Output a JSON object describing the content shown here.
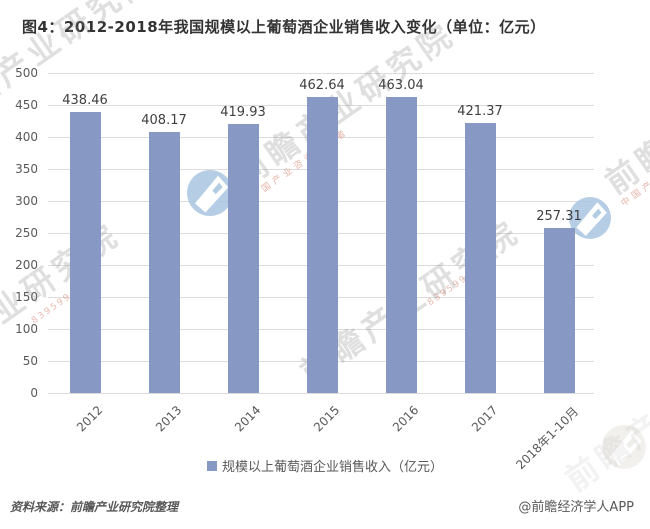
{
  "title": "图4：2012-2018年我国规模以上葡萄酒企业销售收入变化（单位：亿元）",
  "chart_data": {
    "type": "bar",
    "title": "图4：2012-2018年我国规模以上葡萄酒企业销售收入变化（单位：亿元）",
    "categories": [
      "2012",
      "2013",
      "2014",
      "2015",
      "2016",
      "2017",
      "2018年1-10月"
    ],
    "values": [
      438.46,
      408.17,
      419.93,
      462.64,
      463.04,
      421.37,
      257.31
    ],
    "series_name": "规模以上葡萄酒企业销售收入（亿元）",
    "unit": "亿元",
    "ylim": [
      0,
      500
    ],
    "ytick_step": 50,
    "yticks": [
      0,
      50,
      100,
      150,
      200,
      250,
      300,
      350,
      400,
      450,
      500
    ],
    "grid": true,
    "legend_position": "bottom",
    "value_labels": true,
    "bar_color": "#8798C5",
    "grid_color": "#DCDCDC"
  },
  "legend": {
    "label": "规模以上葡萄酒企业销售收入（亿元）"
  },
  "footer": {
    "source": "资料来源：前瞻产业研究院整理",
    "credit": "@前瞻经济学人APP"
  },
  "watermark": {
    "brand_text": "前瞻产业研究院",
    "tagline": "中国产业咨询领导者",
    "digits": "839599",
    "logo_color": "#A9C6E0"
  }
}
